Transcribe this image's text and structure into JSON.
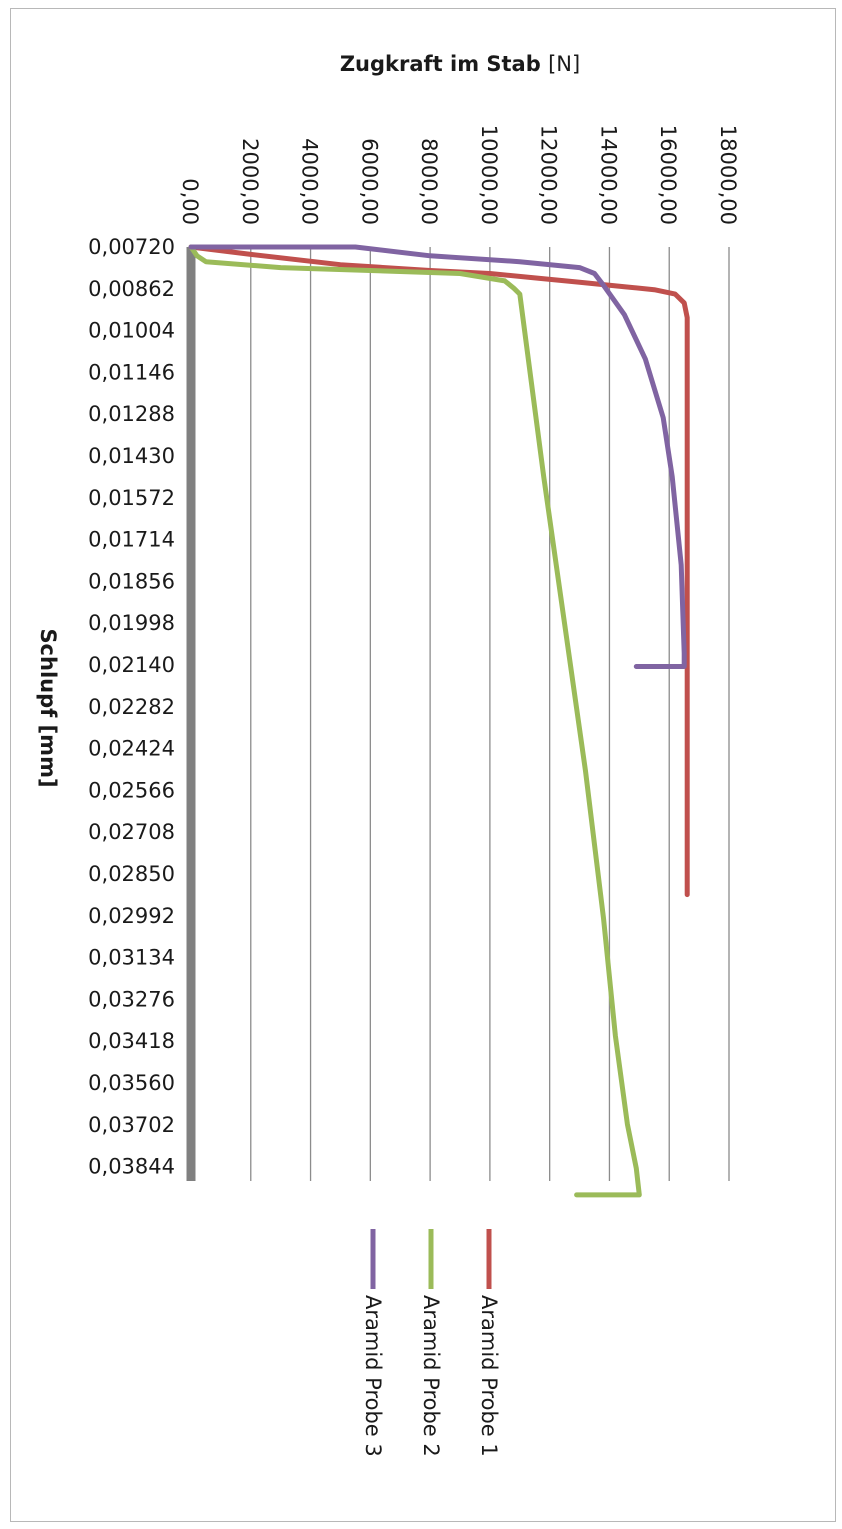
{
  "chart_data": {
    "type": "line",
    "orientation": "rotated",
    "xlabel": "Schlupf [mm]",
    "ylabel": "Zugkraft im Stab [N]",
    "ylabel_unit": "[N]",
    "ylabel_main": "Zugkraft im Stab",
    "categories": [
      "0,00720",
      "0,00862",
      "0,01004",
      "0,01146",
      "0,01288",
      "0,01430",
      "0,01572",
      "0,01714",
      "0,01856",
      "0,01998",
      "0,02140",
      "0,02282",
      "0,02424",
      "0,02566",
      "0,02708",
      "0,02850",
      "0,02992",
      "0,03134",
      "0,03276",
      "0,03418",
      "0,03560",
      "0,03702",
      "0,03844"
    ],
    "yticks": [
      "0,00",
      "2000,00",
      "4000,00",
      "6000,00",
      "8000,00",
      "10000,00",
      "12000,00",
      "14000,00",
      "16000,00",
      "18000,00"
    ],
    "ylim": [
      0,
      18000
    ],
    "xlim": [
      0.0072,
      0.0394
    ],
    "grid": true,
    "legend_position": "bottom",
    "series": [
      {
        "name": "Aramid Probe 1",
        "color": "#c0504d",
        "points": [
          [
            0.0072,
            0
          ],
          [
            0.00745,
            2000
          ],
          [
            0.0078,
            5000
          ],
          [
            0.008,
            8000
          ],
          [
            0.0081,
            10000
          ],
          [
            0.00825,
            11500
          ],
          [
            0.0084,
            13000
          ],
          [
            0.00855,
            14500
          ],
          [
            0.00865,
            15500
          ],
          [
            0.0088,
            16200
          ],
          [
            0.0091,
            16500
          ],
          [
            0.0096,
            16600
          ],
          [
            0.015,
            16600
          ],
          [
            0.02,
            16600
          ],
          [
            0.025,
            16600
          ],
          [
            0.0292,
            16600
          ]
        ]
      },
      {
        "name": "Aramid Probe 2",
        "color": "#9bbb59",
        "points": [
          [
            0.0072,
            0
          ],
          [
            0.00735,
            100
          ],
          [
            0.0075,
            200
          ],
          [
            0.0077,
            500
          ],
          [
            0.0079,
            3000
          ],
          [
            0.008,
            6000
          ],
          [
            0.0081,
            9000
          ],
          [
            0.00835,
            10500
          ],
          [
            0.0086,
            10800
          ],
          [
            0.0088,
            11000
          ],
          [
            0.015,
            11800
          ],
          [
            0.02,
            12500
          ],
          [
            0.025,
            13200
          ],
          [
            0.03,
            13800
          ],
          [
            0.034,
            14200
          ],
          [
            0.037,
            14600
          ],
          [
            0.0385,
            14900
          ],
          [
            0.0394,
            15000
          ],
          [
            0.0394,
            12900
          ]
        ]
      },
      {
        "name": "Aramid Probe 3",
        "color": "#8064a2",
        "points": [
          [
            0.0072,
            0
          ],
          [
            0.0072,
            1000
          ],
          [
            0.0072,
            3000
          ],
          [
            0.0072,
            5500
          ],
          [
            0.0075,
            8000
          ],
          [
            0.0077,
            11000
          ],
          [
            0.0079,
            13000
          ],
          [
            0.0081,
            13500
          ],
          [
            0.0085,
            13800
          ],
          [
            0.0095,
            14500
          ],
          [
            0.011,
            15200
          ],
          [
            0.013,
            15800
          ],
          [
            0.015,
            16100
          ],
          [
            0.018,
            16400
          ],
          [
            0.021,
            16500
          ],
          [
            0.02145,
            16500
          ],
          [
            0.02145,
            14900
          ]
        ]
      }
    ]
  }
}
